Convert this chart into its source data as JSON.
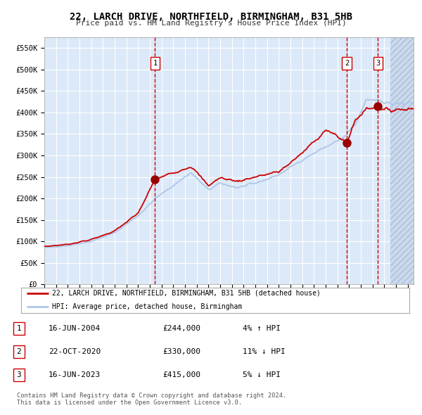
{
  "title": "22, LARCH DRIVE, NORTHFIELD, BIRMINGHAM, B31 5HB",
  "subtitle": "Price paid vs. HM Land Registry's House Price Index (HPI)",
  "ylim": [
    0,
    575000
  ],
  "yticks": [
    0,
    50000,
    100000,
    150000,
    200000,
    250000,
    300000,
    350000,
    400000,
    450000,
    500000,
    550000
  ],
  "ytick_labels": [
    "£0",
    "£50K",
    "£100K",
    "£150K",
    "£200K",
    "£250K",
    "£300K",
    "£350K",
    "£400K",
    "£450K",
    "£500K",
    "£550K"
  ],
  "xlim_start": 1995.0,
  "xlim_end": 2026.5,
  "plot_bg_color": "#dce9f8",
  "grid_color": "#ffffff",
  "hpi_line_color": "#aec6e8",
  "price_line_color": "#cc0000",
  "sale_marker_color": "#990000",
  "vline_color": "#cc0000",
  "sale1_x": 2004.45,
  "sale1_y": 244000,
  "sale2_x": 2020.81,
  "sale2_y": 330000,
  "sale3_x": 2023.46,
  "sale3_y": 415000,
  "future_start": 2024.5,
  "legend_line1": "22, LARCH DRIVE, NORTHFIELD, BIRMINGHAM, B31 5HB (detached house)",
  "legend_line2": "HPI: Average price, detached house, Birmingham",
  "table_entries": [
    {
      "num": "1",
      "date": "16-JUN-2004",
      "price": "£244,000",
      "hpi": "4% ↑ HPI"
    },
    {
      "num": "2",
      "date": "22-OCT-2020",
      "price": "£330,000",
      "hpi": "11% ↓ HPI"
    },
    {
      "num": "3",
      "date": "16-JUN-2023",
      "price": "£415,000",
      "hpi": "5% ↓ HPI"
    }
  ],
  "footer": "Contains HM Land Registry data © Crown copyright and database right 2024.\nThis data is licensed under the Open Government Licence v3.0.",
  "hpi_waypoints": [
    [
      1995.0,
      85000
    ],
    [
      1997.0,
      90000
    ],
    [
      1999.0,
      100000
    ],
    [
      2001.0,
      120000
    ],
    [
      2003.0,
      160000
    ],
    [
      2004.5,
      200000
    ],
    [
      2005.5,
      220000
    ],
    [
      2007.5,
      260000
    ],
    [
      2009.0,
      220000
    ],
    [
      2010.0,
      235000
    ],
    [
      2011.5,
      225000
    ],
    [
      2013.0,
      235000
    ],
    [
      2015.0,
      255000
    ],
    [
      2017.0,
      290000
    ],
    [
      2019.0,
      320000
    ],
    [
      2020.5,
      340000
    ],
    [
      2021.5,
      370000
    ],
    [
      2022.5,
      430000
    ],
    [
      2023.5,
      430000
    ],
    [
      2024.5,
      420000
    ],
    [
      2026.5,
      420000
    ]
  ],
  "price_waypoints": [
    [
      1995.0,
      88000
    ],
    [
      1997.0,
      93000
    ],
    [
      1999.0,
      104000
    ],
    [
      2001.0,
      124000
    ],
    [
      2003.0,
      165000
    ],
    [
      2004.45,
      244000
    ],
    [
      2005.5,
      255000
    ],
    [
      2007.5,
      275000
    ],
    [
      2009.0,
      230000
    ],
    [
      2010.0,
      248000
    ],
    [
      2011.5,
      240000
    ],
    [
      2013.0,
      250000
    ],
    [
      2015.0,
      262000
    ],
    [
      2017.0,
      305000
    ],
    [
      2019.0,
      360000
    ],
    [
      2020.81,
      330000
    ],
    [
      2021.5,
      380000
    ],
    [
      2022.5,
      410000
    ],
    [
      2023.46,
      415000
    ],
    [
      2024.0,
      405000
    ],
    [
      2026.5,
      410000
    ]
  ]
}
